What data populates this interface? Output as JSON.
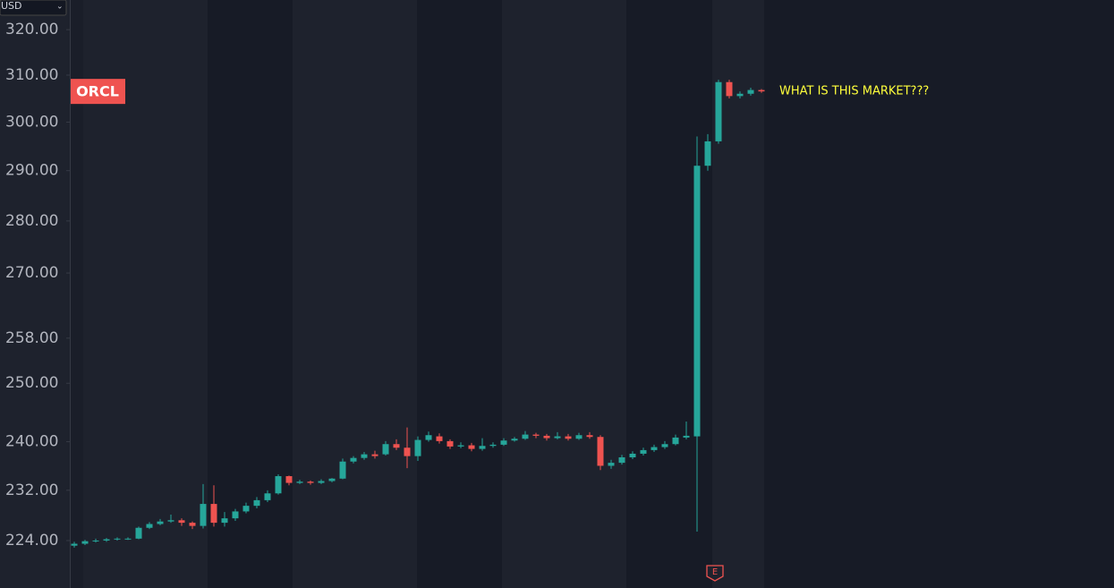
{
  "chart_data": {
    "type": "candlestick",
    "currency": "USD",
    "symbol": "ORCL",
    "annotation": "WHAT IS THIS MARKET???",
    "event_marker": "E",
    "log_scale": true,
    "ylim": [
      216.7,
      326.7
    ],
    "yticks": [
      {
        "value": 320,
        "label": "320.00"
      },
      {
        "value": 310,
        "label": "310.00"
      },
      {
        "value": 300,
        "label": "300.00"
      },
      {
        "value": 290,
        "label": "290.00"
      },
      {
        "value": 280,
        "label": "280.00"
      },
      {
        "value": 270,
        "label": "270.00"
      },
      {
        "value": 258,
        "label": "258.00"
      },
      {
        "value": 250,
        "label": "250.00"
      },
      {
        "value": 240,
        "label": "240.00"
      },
      {
        "value": 232,
        "label": "232.00"
      },
      {
        "value": 224,
        "label": "224.00"
      }
    ],
    "up_color": "#26a69a",
    "down_color": "#ef5350",
    "open": [
      223.2,
      223.5,
      223.9,
      224.0,
      224.2,
      224.3,
      224.3,
      226.0,
      226.6,
      227.0,
      227.2,
      226.8,
      226.3,
      229.8,
      226.8,
      227.5,
      228.6,
      229.5,
      230.4,
      231.5,
      234.3,
      233.2,
      233.4,
      233.2,
      233.5,
      233.9,
      236.7,
      237.3,
      237.9,
      237.9,
      239.6,
      239.0,
      237.6,
      240.3,
      240.9,
      240.1,
      239.2,
      239.4,
      238.8,
      239.3,
      239.5,
      240.2,
      240.5,
      241.2,
      241.0,
      240.6,
      240.9,
      240.5,
      241.1,
      240.8,
      236.0,
      236.5,
      237.4,
      238.0,
      238.6,
      239.1,
      239.6,
      240.7,
      240.9,
      291.0,
      296.0,
      308.5,
      305.5,
      306.0,
      306.8
    ],
    "high": [
      223.8,
      224.1,
      224.3,
      224.4,
      224.5,
      224.5,
      226.2,
      226.9,
      227.4,
      228.1,
      227.5,
      227.0,
      233.0,
      232.8,
      228.5,
      229.0,
      230.0,
      230.9,
      232.0,
      234.6,
      234.4,
      233.7,
      233.6,
      233.8,
      234.0,
      237.2,
      237.6,
      238.3,
      238.5,
      240.1,
      240.4,
      242.4,
      240.9,
      241.7,
      241.4,
      240.4,
      239.9,
      239.8,
      240.6,
      239.9,
      240.6,
      240.8,
      241.8,
      241.5,
      241.3,
      241.6,
      241.3,
      241.5,
      241.6,
      241.1,
      237.0,
      237.8,
      238.4,
      239.0,
      239.5,
      240.1,
      241.2,
      243.4,
      297.0,
      297.5,
      309.0,
      309.0,
      306.5,
      307.3,
      307.0
    ],
    "low": [
      222.9,
      223.3,
      223.7,
      223.8,
      224.0,
      224.1,
      224.2,
      225.8,
      226.4,
      226.8,
      226.3,
      225.8,
      225.9,
      226.2,
      226.2,
      227.1,
      228.3,
      229.1,
      230.1,
      231.3,
      232.8,
      233.0,
      232.9,
      233.0,
      233.3,
      233.8,
      236.4,
      237.0,
      237.2,
      237.7,
      238.6,
      235.6,
      236.8,
      240.0,
      239.7,
      238.8,
      238.9,
      238.4,
      238.5,
      239.0,
      239.3,
      240.0,
      240.3,
      240.6,
      240.2,
      240.4,
      240.2,
      240.3,
      240.5,
      235.3,
      235.5,
      236.2,
      237.1,
      237.7,
      238.3,
      238.8,
      239.4,
      240.4,
      225.4,
      290.0,
      295.5,
      305.0,
      305.0,
      305.6,
      306.2
    ],
    "close": [
      223.5,
      223.9,
      224.0,
      224.2,
      224.3,
      224.3,
      226.0,
      226.6,
      227.0,
      227.2,
      226.8,
      226.3,
      229.8,
      226.8,
      227.5,
      228.6,
      229.5,
      230.4,
      231.5,
      234.3,
      233.2,
      233.4,
      233.2,
      233.5,
      233.9,
      236.7,
      237.3,
      237.9,
      237.6,
      239.6,
      239.0,
      237.6,
      240.3,
      241.1,
      240.1,
      239.2,
      239.4,
      238.8,
      239.3,
      239.5,
      240.2,
      240.5,
      241.2,
      241.0,
      240.6,
      240.9,
      240.5,
      241.1,
      240.8,
      236.0,
      236.5,
      237.4,
      238.0,
      238.6,
      239.1,
      239.6,
      240.7,
      241.0,
      291.0,
      296.0,
      308.5,
      305.5,
      306.0,
      306.8,
      306.5
    ]
  }
}
